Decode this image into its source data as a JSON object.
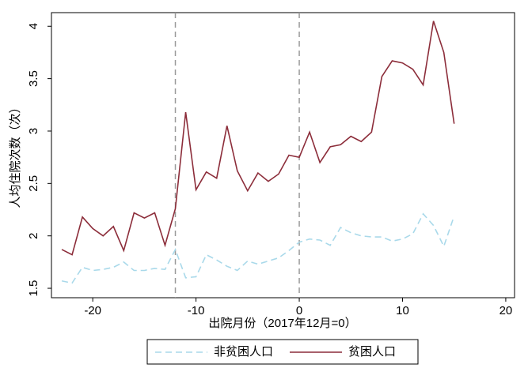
{
  "chart_data": {
    "type": "line",
    "xlabel": "出院月份（2017年12月=0）",
    "ylabel": "人均住院次数（次）",
    "x": [
      -23,
      -22,
      -21,
      -20,
      -19,
      -18,
      -17,
      -16,
      -15,
      -14,
      -13,
      -12,
      -11,
      -10,
      -9,
      -8,
      -7,
      -6,
      -5,
      -4,
      -3,
      -2,
      -1,
      0,
      1,
      2,
      3,
      4,
      5,
      6,
      7,
      8,
      9,
      10,
      11,
      12,
      13,
      14,
      15
    ],
    "series": [
      {
        "name": "非贫困人口",
        "color": "#a9d9ea",
        "dashed": true,
        "values": [
          1.57,
          1.55,
          1.7,
          1.67,
          1.68,
          1.7,
          1.75,
          1.67,
          1.67,
          1.69,
          1.68,
          1.87,
          1.6,
          1.61,
          1.82,
          1.77,
          1.71,
          1.67,
          1.76,
          1.73,
          1.76,
          1.79,
          1.86,
          1.94,
          1.97,
          1.96,
          1.91,
          2.08,
          2.03,
          2.0,
          1.99,
          1.99,
          1.95,
          1.97,
          2.02,
          2.21,
          2.1,
          1.9,
          2.19
        ]
      },
      {
        "name": "贫困人口",
        "color": "#8c2d3a",
        "dashed": false,
        "values": [
          1.87,
          1.82,
          2.18,
          2.07,
          2.0,
          2.09,
          1.86,
          2.22,
          2.17,
          2.22,
          1.91,
          2.26,
          3.18,
          2.44,
          2.61,
          2.55,
          3.05,
          2.62,
          2.43,
          2.6,
          2.52,
          2.59,
          2.77,
          2.75,
          2.99,
          2.7,
          2.85,
          2.87,
          2.95,
          2.9,
          2.99,
          3.52,
          3.67,
          3.65,
          3.59,
          3.44,
          4.05,
          3.75,
          3.07
        ]
      }
    ],
    "vlines": [
      -12,
      0
    ],
    "xlim": [
      -24,
      20.85
    ],
    "xticks": [
      -20,
      -10,
      0,
      10,
      20
    ],
    "ylim": [
      1.41,
      4.13
    ],
    "yticks": [
      1.5,
      2,
      2.5,
      3,
      3.5,
      4
    ],
    "grid": false
  }
}
